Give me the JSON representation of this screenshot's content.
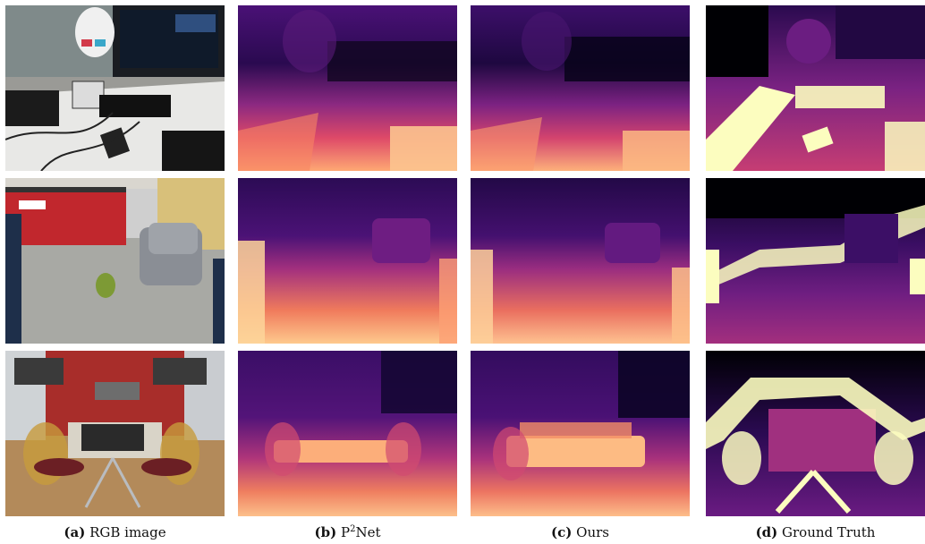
{
  "captions": [
    {
      "label": "(a)",
      "text": "RGB image"
    },
    {
      "label": "(b)",
      "text_prefix": "P",
      "text_sup": "2",
      "text_suffix": "Net"
    },
    {
      "label": "(c)",
      "text": "Ours"
    },
    {
      "label": "(d)",
      "text": "Ground Truth"
    }
  ],
  "colors": {
    "depth_near": "#fcfdbf",
    "depth_mid_near": "#fc8961",
    "depth_mid": "#b73779",
    "depth_mid_far": "#51127c",
    "depth_far": "#000004"
  },
  "rows": [
    {
      "scene": "office desk with mannequin head, monitor and keyboard"
    },
    {
      "scene": "kitchen with red cabinets, armchair and fruit"
    },
    {
      "scene": "room with chess table, chairs and monitors"
    }
  ]
}
